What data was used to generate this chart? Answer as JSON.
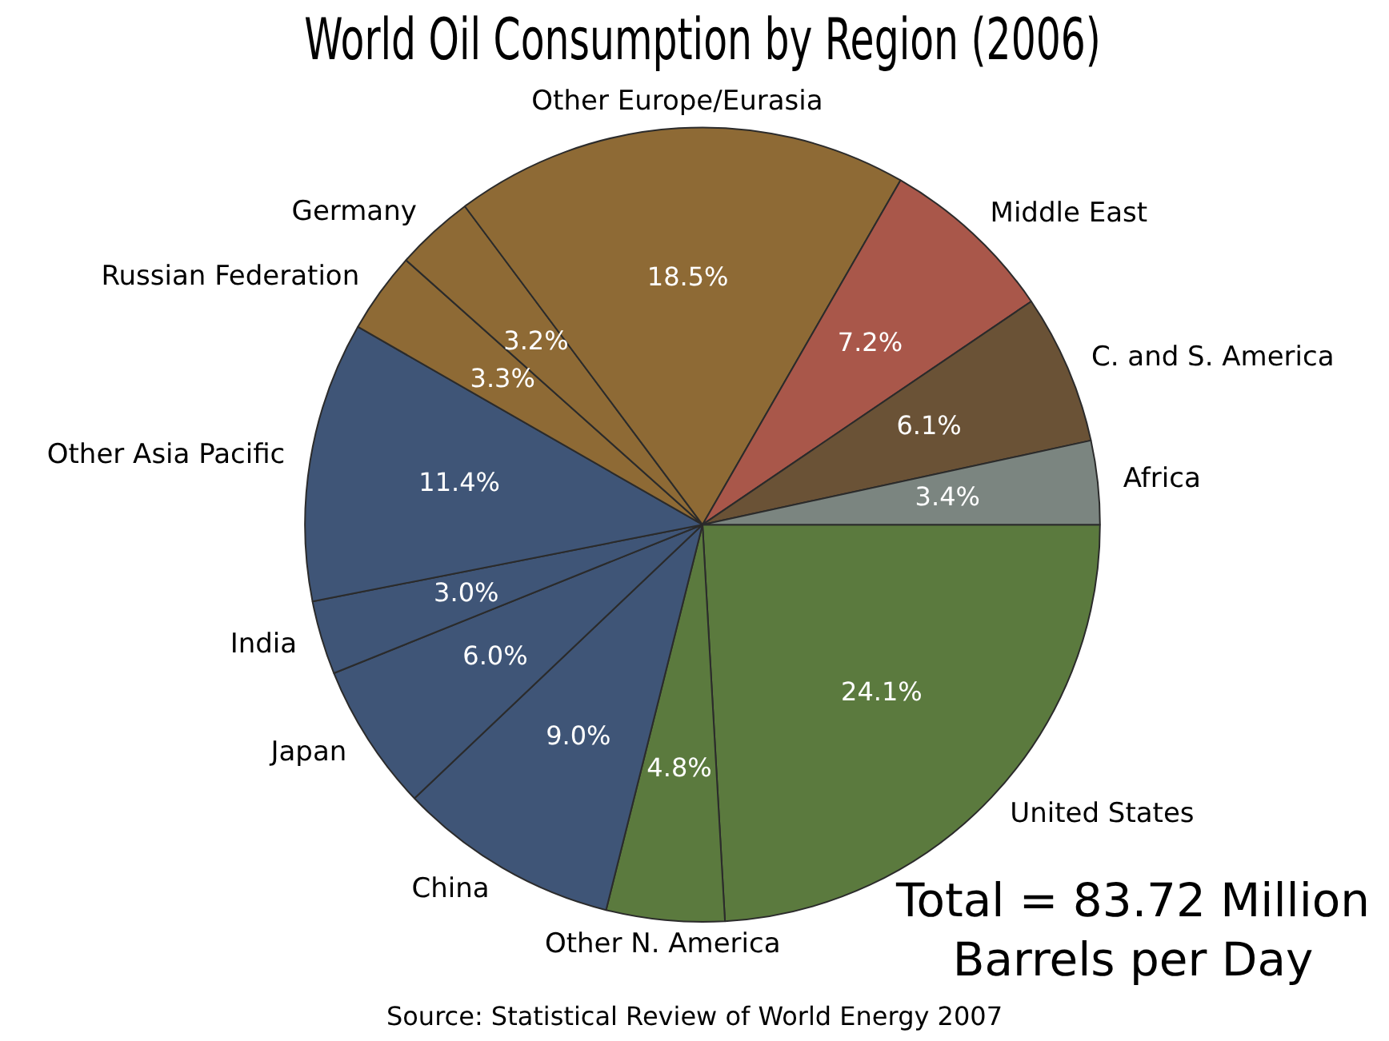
{
  "chart_data": {
    "type": "pie",
    "title": "World Oil Consumption by Region (2006)",
    "categories": [
      "United States",
      "Other N. America",
      "China",
      "Japan",
      "India",
      "Other Asia Pacific",
      "Russian Federation",
      "Germany",
      "Other Europe/Eurasia",
      "Middle East",
      "C. and S. America",
      "Africa"
    ],
    "values": [
      24.1,
      4.8,
      9.0,
      6.0,
      3.0,
      11.4,
      3.3,
      3.2,
      18.5,
      7.2,
      6.1,
      3.4
    ],
    "value_labels": [
      "24.1%",
      "4.8%",
      "9.0%",
      "6.0%",
      "3.0%",
      "11.4%",
      "3.3%",
      "3.2%",
      "18.5%",
      "7.2%",
      "6.1%",
      "3.4%"
    ],
    "colors": [
      "#5b7a3e",
      "#5b7a3e",
      "#3f5577",
      "#3f5577",
      "#3f5577",
      "#3f5577",
      "#8e6a35",
      "#8e6a35",
      "#8e6a35",
      "#a9574a",
      "#6a5236",
      "#7b8580"
    ],
    "annotations": [
      "Total = 83.72 Million Barrels per Day",
      "Source:  Statistical Review of World Energy 2007"
    ],
    "legend": false
  }
}
